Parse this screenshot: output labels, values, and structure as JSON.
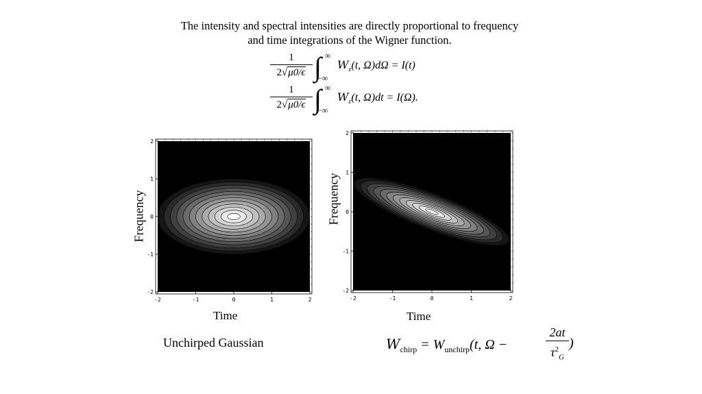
{
  "intro": {
    "line1": "The intensity and spectral intensities are directly proportional to frequency",
    "line2": "and time integrations of the Wigner function."
  },
  "equations": {
    "numerator": "1",
    "den_prefix": "2",
    "den_sqrt": "μ0/ϵ",
    "upper_limit": "∞",
    "lower_limit": "−∞",
    "eq1_rhs": "(t, Ω)dΩ = I(t)",
    "eq2_rhs": "(t, Ω)dt = I(Ω).",
    "wigner_symbol": "W",
    "wigner_sub": "ε"
  },
  "plots": [
    {
      "ylabel": "Frequency",
      "xlabel": "Time",
      "x_ticks": [
        "-2",
        "-1",
        "0",
        "1",
        "2"
      ],
      "y_ticks": [
        "2",
        "1",
        "0",
        "-1",
        "-2"
      ],
      "contours": {
        "center": [
          0,
          0
        ],
        "sx": 2.0,
        "sy": 1.0,
        "slope": 0,
        "levels": 12
      }
    },
    {
      "ylabel": "Frequency",
      "xlabel": "Time",
      "x_ticks": [
        "-2",
        "-1",
        "0",
        "1",
        "2"
      ],
      "y_ticks": [
        "2",
        "1",
        "0",
        "-1",
        "-2"
      ],
      "contours": {
        "center": [
          0,
          0
        ],
        "sx": 2.1,
        "sy": 0.45,
        "slope": -0.38,
        "levels": 12
      }
    }
  ],
  "captions": {
    "left": "Unchirped Gaussian",
    "chirp_lhs": "W",
    "chirp_lhs_sub": "chirp",
    "chirp_eq": " = W",
    "chirp_rhs_sub": "unchirp",
    "chirp_args": "(t, Ω −",
    "chirp_num": "2at",
    "chirp_den": "τ",
    "chirp_den_sup": "2",
    "chirp_den_sub": "G",
    "chirp_close": ")"
  }
}
